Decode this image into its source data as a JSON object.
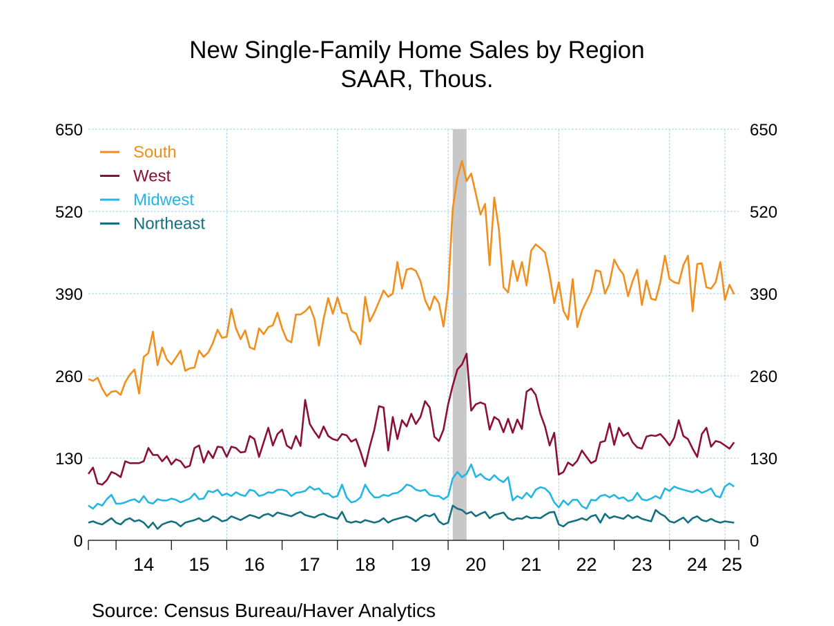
{
  "chart_data": {
    "type": "line",
    "title": "New Single-Family Home Sales by Region",
    "subtitle": "SAAR, Thous.",
    "source": "Source:  Census Bureau/Haver Analytics",
    "ylim": [
      0,
      650
    ],
    "yticks": [
      0,
      130,
      260,
      390,
      520,
      650
    ],
    "ytick_labels": [
      "0",
      "130",
      "260",
      "390",
      "520",
      "650"
    ],
    "x_start": "2013-07",
    "x_end": "2025-04",
    "xtick_labels": [
      "14",
      "15",
      "16",
      "17",
      "18",
      "19",
      "20",
      "21",
      "22",
      "23",
      "24",
      "25"
    ],
    "recession": {
      "from": "2020-02",
      "to": "2020-04"
    },
    "grid": true,
    "legend_position": "top-left",
    "colors": {
      "South": "#f28e1c",
      "West": "#8c1033",
      "Midwest": "#22b6e4",
      "Northeast": "#13707f",
      "grid": "#9fd0ef",
      "recession": "#c8c8c8"
    },
    "series": [
      {
        "name": "South",
        "color": "#f28e1c",
        "values": [
          255,
          252,
          257,
          240,
          228,
          235,
          236,
          230,
          250,
          262,
          270,
          232,
          290,
          296,
          330,
          277,
          305,
          286,
          278,
          289,
          300,
          268,
          272,
          273,
          300,
          290,
          297,
          312,
          333,
          320,
          322,
          366,
          335,
          318,
          332,
          305,
          302,
          335,
          326,
          337,
          340,
          360,
          335,
          317,
          313,
          357,
          357,
          362,
          370,
          350,
          308,
          350,
          383,
          358,
          384,
          360,
          358,
          332,
          327,
          310,
          385,
          346,
          360,
          377,
          395,
          385,
          390,
          440,
          398,
          428,
          430,
          426,
          410,
          380,
          364,
          386,
          375,
          338,
          395,
          525,
          573,
          600,
          568,
          580,
          548,
          515,
          532,
          435,
          542,
          492,
          400,
          392,
          442,
          410,
          440,
          403,
          458,
          468,
          462,
          455,
          420,
          375,
          408,
          363,
          349,
          413,
          337,
          363,
          378,
          393,
          427,
          425,
          390,
          406,
          444,
          430,
          420,
          386,
          410,
          428,
          372,
          411,
          382,
          380,
          408,
          450,
          413,
          408,
          406,
          435,
          450,
          362,
          437,
          438,
          400,
          398,
          408,
          440,
          380,
          404,
          389
        ]
      },
      {
        "name": "West",
        "color": "#8c1033",
        "values": [
          105,
          115,
          90,
          88,
          95,
          108,
          105,
          100,
          125,
          122,
          122,
          122,
          125,
          146,
          135,
          135,
          125,
          133,
          120,
          128,
          125,
          115,
          118,
          146,
          150,
          123,
          141,
          130,
          148,
          147,
          132,
          148,
          146,
          139,
          140,
          165,
          160,
          132,
          155,
          178,
          150,
          168,
          175,
          150,
          145,
          165,
          149,
          222,
          184,
          172,
          162,
          180,
          165,
          160,
          158,
          168,
          166,
          156,
          160,
          140,
          117,
          148,
          175,
          212,
          210,
          142,
          195,
          160,
          190,
          180,
          200,
          184,
          195,
          220,
          210,
          164,
          157,
          175,
          215,
          245,
          270,
          278,
          295,
          205,
          215,
          218,
          215,
          175,
          195,
          190,
          171,
          192,
          170,
          191,
          176,
          235,
          240,
          230,
          200,
          180,
          150,
          170,
          104,
          108,
          123,
          118,
          126,
          142,
          132,
          122,
          126,
          155,
          157,
          185,
          151,
          178,
          165,
          170,
          155,
          147,
          145,
          164,
          166,
          165,
          168,
          160,
          150,
          162,
          190,
          165,
          160,
          145,
          132,
          168,
          178,
          148,
          157,
          155,
          150,
          145,
          155
        ]
      },
      {
        "name": "Midwest",
        "color": "#22b6e4",
        "values": [
          55,
          50,
          58,
          55,
          65,
          72,
          58,
          58,
          60,
          63,
          65,
          60,
          70,
          60,
          58,
          65,
          63,
          63,
          66,
          64,
          60,
          63,
          66,
          74,
          65,
          66,
          78,
          76,
          80,
          71,
          74,
          70,
          76,
          72,
          70,
          80,
          78,
          70,
          72,
          76,
          75,
          80,
          80,
          78,
          70,
          75,
          76,
          78,
          85,
          80,
          82,
          74,
          74,
          68,
          70,
          88,
          68,
          60,
          62,
          68,
          88,
          76,
          68,
          68,
          72,
          70,
          74,
          75,
          80,
          88,
          86,
          80,
          78,
          80,
          72,
          70,
          70,
          65,
          70,
          98,
          108,
          100,
          105,
          120,
          100,
          105,
          98,
          95,
          103,
          96,
          92,
          100,
          63,
          70,
          66,
          75,
          68,
          80,
          84,
          82,
          75,
          60,
          52,
          63,
          56,
          64,
          64,
          54,
          50,
          64,
          63,
          70,
          72,
          68,
          72,
          66,
          68,
          62,
          64,
          75,
          65,
          63,
          66,
          70,
          66,
          82,
          78,
          85,
          82,
          80,
          78,
          76,
          80,
          75,
          78,
          82,
          70,
          68,
          85,
          90,
          85
        ]
      },
      {
        "name": "Northeast",
        "color": "#13707f",
        "values": [
          28,
          30,
          27,
          25,
          30,
          35,
          28,
          25,
          32,
          35,
          30,
          32,
          28,
          20,
          28,
          18,
          25,
          28,
          30,
          28,
          22,
          28,
          30,
          32,
          35,
          30,
          32,
          38,
          35,
          30,
          32,
          38,
          35,
          32,
          36,
          40,
          38,
          35,
          40,
          42,
          38,
          44,
          42,
          40,
          38,
          42,
          45,
          40,
          38,
          36,
          40,
          42,
          38,
          36,
          34,
          45,
          30,
          28,
          30,
          28,
          32,
          30,
          28,
          30,
          35,
          28,
          32,
          34,
          36,
          38,
          35,
          30,
          36,
          40,
          38,
          42,
          30,
          25,
          28,
          55,
          50,
          48,
          42,
          45,
          38,
          42,
          45,
          35,
          40,
          42,
          44,
          35,
          32,
          35,
          34,
          38,
          35,
          36,
          35,
          40,
          44,
          45,
          25,
          22,
          28,
          30,
          32,
          35,
          32,
          38,
          40,
          28,
          42,
          35,
          38,
          36,
          34,
          40,
          35,
          38,
          34,
          32,
          30,
          48,
          42,
          38,
          30,
          28,
          32,
          36,
          28,
          35,
          38,
          32,
          30,
          34,
          30,
          28,
          30,
          29,
          28
        ]
      }
    ]
  }
}
